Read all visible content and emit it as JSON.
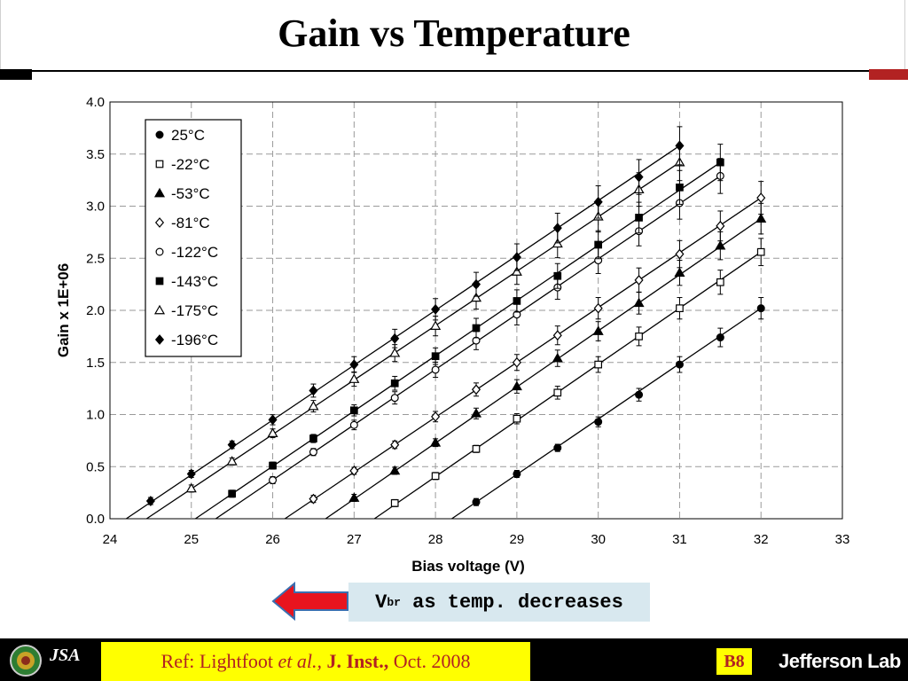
{
  "slide": {
    "title": "Gain vs Temperature",
    "annotation_main": "V",
    "annotation_sub": "br",
    "annotation_rest": " as temp. decreases",
    "ref_prefix": "Ref: Lightfoot ",
    "ref_etal": "et al.,",
    "ref_journal": " J. Inst.,",
    "ref_suffix": " Oct. 2008",
    "slide_id": "B8",
    "lab_name": "Jefferson Lab",
    "jsa_logo": "JSA"
  },
  "colors": {
    "accent_red": "#b22222",
    "highlight_yellow": "#ffff00",
    "arrow_red": "#e8141e",
    "annotation_bg": "#d8e8ef",
    "grid_gray": "#9a9a9a"
  },
  "chart_data": {
    "type": "scatter",
    "xlabel": "Bias voltage (V)",
    "ylabel": "Gain x 1E+06",
    "xlim": [
      24,
      33
    ],
    "ylim": [
      0,
      4
    ],
    "xticks": [
      24,
      25,
      26,
      27,
      28,
      29,
      30,
      31,
      32,
      33
    ],
    "yticks": [
      "0.0",
      "0.5",
      "1.0",
      "1.5",
      "2.0",
      "2.5",
      "3.0",
      "3.5",
      "4.0"
    ],
    "grid": true,
    "legend_position": "top-left",
    "series": [
      {
        "name": "25°C",
        "marker": "circle-filled",
        "x": [
          28.5,
          29,
          29.5,
          30,
          30.5,
          31,
          31.5,
          32
        ],
        "y": [
          0.16,
          0.43,
          0.68,
          0.93,
          1.19,
          1.48,
          1.74,
          2.02
        ],
        "fit": [
          [
            28.2,
            0
          ],
          [
            32,
            2.02
          ]
        ]
      },
      {
        "name": "-22°C",
        "marker": "square-open",
        "x": [
          27.5,
          28,
          28.5,
          29,
          29.5,
          30,
          30.5,
          31,
          31.5,
          32
        ],
        "y": [
          0.15,
          0.41,
          0.67,
          0.96,
          1.21,
          1.48,
          1.75,
          2.02,
          2.27,
          2.56
        ],
        "fit": [
          [
            27.25,
            0
          ],
          [
            32,
            2.56
          ]
        ]
      },
      {
        "name": "-53°C",
        "marker": "triangle-filled",
        "x": [
          27,
          27.5,
          28,
          28.5,
          29,
          29.5,
          30,
          30.5,
          31,
          31.5,
          32
        ],
        "y": [
          0.2,
          0.46,
          0.73,
          1.01,
          1.27,
          1.54,
          1.8,
          2.07,
          2.36,
          2.62,
          2.88
        ],
        "fit": [
          [
            26.65,
            0
          ],
          [
            32,
            2.88
          ]
        ]
      },
      {
        "name": "-81°C",
        "marker": "diamond-open",
        "x": [
          26.5,
          27,
          27.5,
          28,
          28.5,
          29,
          29.5,
          30,
          30.5,
          31,
          31.5,
          32
        ],
        "y": [
          0.19,
          0.46,
          0.71,
          0.98,
          1.24,
          1.5,
          1.76,
          2.02,
          2.29,
          2.54,
          2.81,
          3.08
        ],
        "fit": [
          [
            26.15,
            0
          ],
          [
            32,
            3.08
          ]
        ]
      },
      {
        "name": "-122°C",
        "marker": "circle-open",
        "x": [
          26,
          26.5,
          27,
          27.5,
          28,
          28.5,
          29,
          29.5,
          30,
          30.5,
          31,
          31.5
        ],
        "y": [
          0.37,
          0.64,
          0.9,
          1.16,
          1.43,
          1.71,
          1.96,
          2.22,
          2.48,
          2.76,
          3.03,
          3.29
        ],
        "fit": [
          [
            25.3,
            0
          ],
          [
            31.5,
            3.29
          ]
        ]
      },
      {
        "name": "-143°C",
        "marker": "square-filled",
        "x": [
          25.5,
          26,
          26.5,
          27,
          27.5,
          28,
          28.5,
          29,
          29.5,
          30,
          30.5,
          31,
          31.5
        ],
        "y": [
          0.24,
          0.51,
          0.77,
          1.04,
          1.3,
          1.56,
          1.83,
          2.09,
          2.33,
          2.63,
          2.89,
          3.18,
          3.42
        ],
        "fit": [
          [
            25.05,
            0
          ],
          [
            31.5,
            3.42
          ]
        ]
      },
      {
        "name": "-175°C",
        "marker": "triangle-open",
        "x": [
          25,
          25.5,
          26,
          26.5,
          27,
          27.5,
          28,
          28.5,
          29,
          29.5,
          30,
          30.5,
          31
        ],
        "y": [
          0.29,
          0.55,
          0.82,
          1.08,
          1.34,
          1.59,
          1.85,
          2.12,
          2.37,
          2.64,
          2.9,
          3.16,
          3.42
        ],
        "fit": [
          [
            24.45,
            0
          ],
          [
            31,
            3.42
          ]
        ]
      },
      {
        "name": "-196°C",
        "marker": "diamond-filled",
        "x": [
          24.5,
          25,
          25.5,
          26,
          26.5,
          27,
          27.5,
          28,
          28.5,
          29,
          29.5,
          30,
          30.5,
          31
        ],
        "y": [
          0.17,
          0.43,
          0.71,
          0.95,
          1.23,
          1.48,
          1.73,
          2.01,
          2.25,
          2.51,
          2.79,
          3.04,
          3.28,
          3.58
        ],
        "fit": [
          [
            24.2,
            0
          ],
          [
            31,
            3.58
          ]
        ]
      }
    ]
  }
}
